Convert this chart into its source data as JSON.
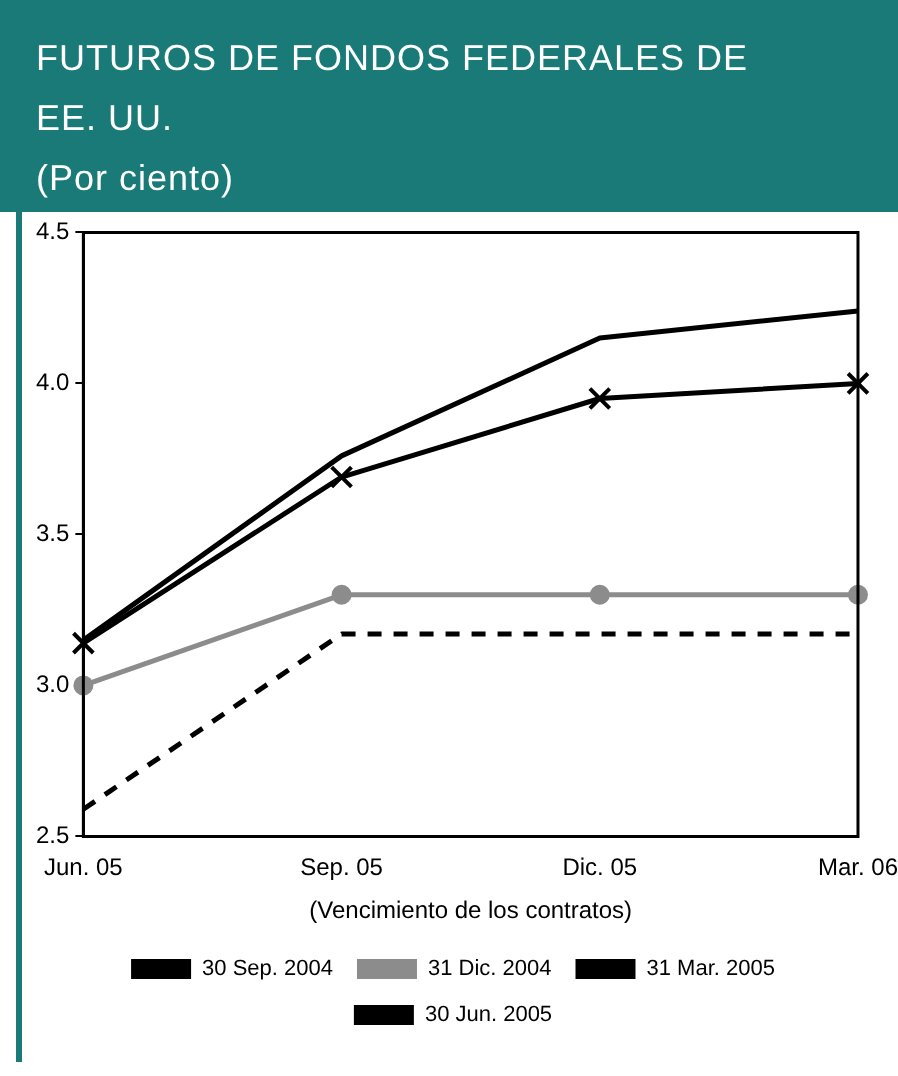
{
  "chart_data": {
    "type": "line",
    "title": "FUTUROS DE FONDOS FEDERALES DE EE. UU.",
    "subtitle": "(Por ciento)",
    "xlabel": "(Vencimiento de los contratos)",
    "categories": [
      "Jun. 05",
      "Sep. 05",
      "Dic. 05",
      "Mar. 06"
    ],
    "series": [
      {
        "name": "30 Sep. 2004",
        "color": "#000000",
        "values": [
          2.59,
          3.17,
          3.17,
          3.17
        ],
        "marker": "none",
        "line_style": "dashed"
      },
      {
        "name": "31 Dic. 2004",
        "color": "#8c8c8c",
        "values": [
          3.0,
          3.3,
          3.3,
          3.3
        ],
        "marker": "circle",
        "line_style": "solid"
      },
      {
        "name": "31 Mar. 2005",
        "color": "#000000",
        "values": [
          3.15,
          3.76,
          4.15,
          4.24
        ],
        "marker": "none",
        "line_style": "solid"
      },
      {
        "name": "30 Jun. 2005",
        "color": "#000000",
        "values": [
          3.14,
          3.69,
          3.95,
          4.0
        ],
        "marker": "cross",
        "line_style": "solid"
      }
    ],
    "ylim": [
      2.5,
      4.5
    ],
    "yticks": [
      {
        "value": 2.5,
        "label": "2.5"
      },
      {
        "value": 3,
        "label": "3.0"
      },
      {
        "value": 3.5,
        "label": "3.5"
      },
      {
        "value": 4,
        "label": "4.0"
      },
      {
        "value": 4.5,
        "label": "4.5"
      }
    ],
    "grid": false,
    "legend": "bottom"
  }
}
